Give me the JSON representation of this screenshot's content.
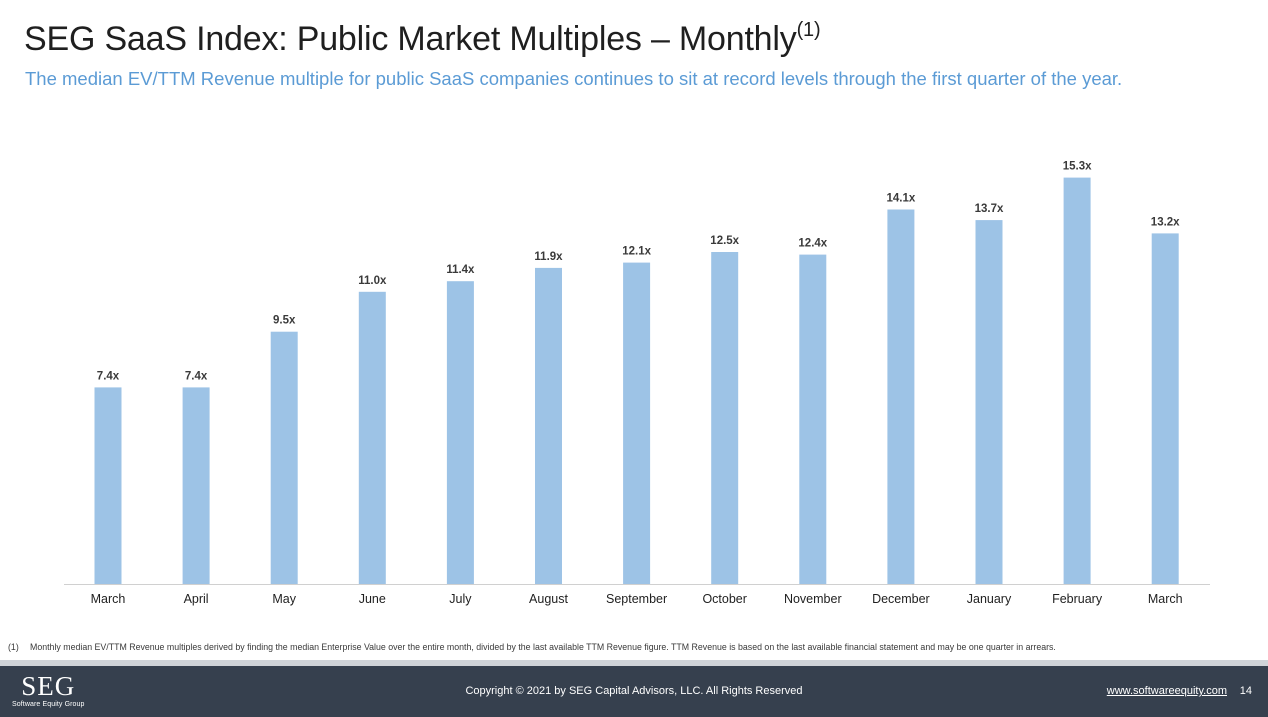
{
  "header": {
    "title": "SEG SaaS Index: Public Market Multiples – Monthly",
    "title_note": "(1)",
    "subtitle": "The median EV/TTM Revenue multiple for public SaaS companies continues to sit at record levels through the first quarter of the year."
  },
  "chart_data": {
    "type": "bar",
    "categories": [
      "March",
      "April",
      "May",
      "June",
      "July",
      "August",
      "September",
      "October",
      "November",
      "December",
      "January",
      "February",
      "March"
    ],
    "values": [
      7.4,
      7.4,
      9.5,
      11.0,
      11.4,
      11.9,
      12.1,
      12.5,
      12.4,
      14.1,
      13.7,
      15.3,
      13.2
    ],
    "value_labels": [
      "7.4x",
      "7.4x",
      "9.5x",
      "11.0x",
      "11.4x",
      "11.9x",
      "12.1x",
      "12.5x",
      "12.4x",
      "14.1x",
      "13.7x",
      "15.3x",
      "13.2x"
    ],
    "title": "",
    "xlabel": "",
    "ylabel": "",
    "ylim": [
      0,
      16
    ],
    "grid": false,
    "bar_color": "#9dc3e6"
  },
  "footnote": {
    "number": "(1)",
    "text": "Monthly median EV/TTM Revenue multiples derived by finding the median Enterprise Value over the entire month, divided by the last available TTM Revenue figure. TTM Revenue is based on the last available financial statement and may be one quarter in arrears."
  },
  "footer": {
    "logo_mark": "SEG",
    "logo_sub": "Software Equity Group",
    "copyright": "Copyright © 2021 by SEG Capital Advisors, LLC. All Rights Reserved",
    "website": "www.softwareequity.com",
    "page_number": "14",
    "background": "#36404e"
  }
}
